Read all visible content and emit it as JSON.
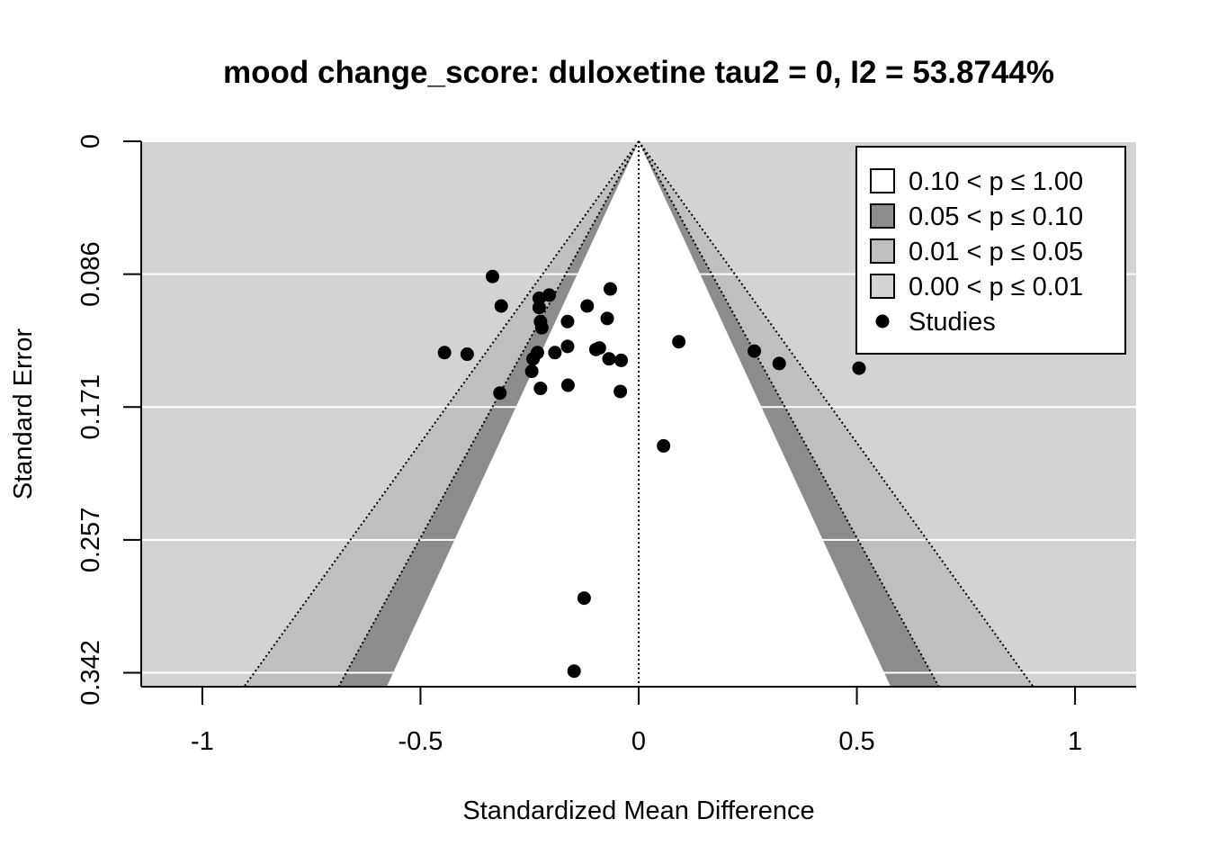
{
  "chart_data": {
    "type": "scatter",
    "subtype": "contour-enhanced funnel plot",
    "title": "mood change_score: duloxetine tau2 = 0, I2 = 53.8744%",
    "xlabel": "Standardized Mean Difference",
    "ylabel": "Standard Error",
    "xlim": [
      -1.14,
      1.14
    ],
    "ylim": [
      0.351,
      0
    ],
    "x_ticks": [
      "-1",
      "-0.5",
      "0",
      "0.5",
      "1"
    ],
    "x_tick_values": [
      -1,
      -0.5,
      0,
      0.5,
      1
    ],
    "y_ticks": [
      "0",
      "0.086",
      "0.171",
      "0.257",
      "0.342"
    ],
    "y_tick_values": [
      0,
      0.0855,
      0.171,
      0.2565,
      0.342
    ],
    "grid": "horizontal white lines at y ticks",
    "center_line_x": 0,
    "contours": [
      {
        "label": "0.10 < p ≤ 1.00",
        "color": "#ffffff"
      },
      {
        "label": "0.05 < p ≤ 0.10",
        "color": "#8c8c8c"
      },
      {
        "label": "0.01 < p ≤ 0.05",
        "color": "#bfbfbf"
      },
      {
        "label": "0.00 < p ≤ 0.01",
        "color": "#d3d3d3"
      }
    ],
    "contour_z": [
      1.645,
      1.96,
      2.576
    ],
    "legend": {
      "position": "top-right",
      "studies_label": "Studies"
    },
    "points": [
      {
        "x": -0.335,
        "y": 0.087
      },
      {
        "x": -0.065,
        "y": 0.095
      },
      {
        "x": -0.205,
        "y": 0.099
      },
      {
        "x": -0.228,
        "y": 0.101
      },
      {
        "x": -0.315,
        "y": 0.106
      },
      {
        "x": -0.228,
        "y": 0.107
      },
      {
        "x": -0.118,
        "y": 0.106
      },
      {
        "x": -0.072,
        "y": 0.114
      },
      {
        "x": -0.225,
        "y": 0.116
      },
      {
        "x": -0.163,
        "y": 0.116
      },
      {
        "x": -0.222,
        "y": 0.12
      },
      {
        "x": 0.092,
        "y": 0.129
      },
      {
        "x": -0.163,
        "y": 0.132
      },
      {
        "x": -0.09,
        "y": 0.133
      },
      {
        "x": -0.098,
        "y": 0.134
      },
      {
        "x": -0.445,
        "y": 0.136
      },
      {
        "x": -0.393,
        "y": 0.137
      },
      {
        "x": -0.232,
        "y": 0.136
      },
      {
        "x": -0.192,
        "y": 0.136
      },
      {
        "x": 0.265,
        "y": 0.135
      },
      {
        "x": -0.242,
        "y": 0.14
      },
      {
        "x": -0.068,
        "y": 0.14
      },
      {
        "x": -0.04,
        "y": 0.141
      },
      {
        "x": 0.322,
        "y": 0.143
      },
      {
        "x": 0.505,
        "y": 0.146
      },
      {
        "x": -0.245,
        "y": 0.148
      },
      {
        "x": -0.162,
        "y": 0.157
      },
      {
        "x": -0.225,
        "y": 0.159
      },
      {
        "x": -0.318,
        "y": 0.162
      },
      {
        "x": -0.042,
        "y": 0.161
      },
      {
        "x": 0.057,
        "y": 0.196
      },
      {
        "x": -0.125,
        "y": 0.294
      },
      {
        "x": -0.148,
        "y": 0.341
      }
    ]
  }
}
